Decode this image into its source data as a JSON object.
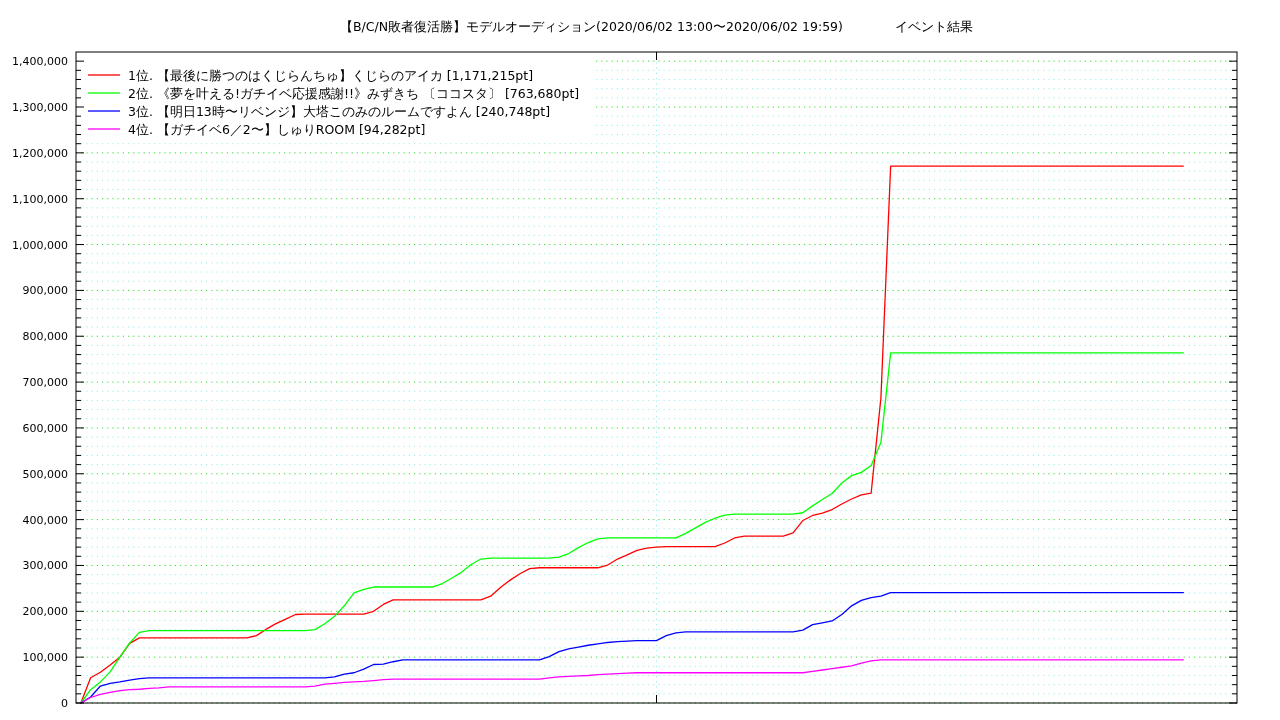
{
  "chart_data": {
    "type": "line",
    "title": "【B/C/N敗者復活勝】モデルオーディション(2020/06/02 13:00〜2020/06/02 19:59)　　　　イベント結果",
    "categories": [
      null,
      null,
      null,
      null,
      null,
      null,
      null,
      null,
      null,
      null,
      null,
      null,
      null,
      null,
      null,
      null,
      null,
      null,
      null,
      null,
      null,
      null,
      null,
      null,
      null,
      null,
      null,
      null,
      null,
      null,
      null,
      null,
      null,
      null,
      null,
      null,
      null,
      null,
      null,
      null,
      null,
      null,
      null,
      null,
      null,
      null,
      null,
      null,
      null,
      null,
      null,
      null,
      null,
      null,
      null,
      null,
      null,
      null,
      null,
      null,
      null,
      null,
      null,
      null,
      null,
      null,
      null,
      null,
      null,
      null,
      null,
      null,
      null,
      null,
      null,
      null,
      null,
      null,
      null,
      null,
      null,
      null,
      null,
      null,
      null,
      null,
      null,
      null,
      null,
      null,
      null,
      null,
      null,
      null,
      null,
      null,
      null,
      null,
      null,
      null,
      null,
      null,
      null,
      null,
      null,
      null,
      null,
      null,
      null,
      null,
      null,
      null,
      null,
      null,
      null,
      null,
      null,
      null,
      null
    ],
    "series": [
      {
        "name": "1位. 【最後に勝つのはくじらんちゅ】くじらのアイカ [1,171,215pt]",
        "color": "#ff0000",
        "values": [
          0,
          55000,
          67000,
          83000,
          100000,
          130000,
          142000,
          142000,
          142000,
          142000,
          142000,
          142000,
          142000,
          142000,
          142000,
          142000,
          142000,
          142000,
          147000,
          161000,
          173000,
          183000,
          193000,
          194000,
          194000,
          194000,
          194000,
          194000,
          194000,
          194000,
          200000,
          215000,
          225000,
          225000,
          225000,
          225000,
          225000,
          225000,
          225000,
          225000,
          225000,
          225000,
          233000,
          252000,
          268000,
          282000,
          293000,
          295000,
          295000,
          295000,
          295000,
          295000,
          295000,
          295000,
          301000,
          314000,
          323000,
          333000,
          338000,
          340000,
          341000,
          341000,
          341000,
          341000,
          341000,
          341000,
          349000,
          360000,
          364000,
          364000,
          364000,
          364000,
          364000,
          371000,
          398000,
          409000,
          414000,
          422000,
          434000,
          445000,
          454000,
          458000,
          665000,
          1171215,
          1171215,
          1171215,
          1171215,
          1171215,
          1171215,
          1171215,
          1171215,
          1171215,
          1171215,
          1171215,
          1171215,
          1171215,
          1171215,
          1171215,
          1171215,
          1171215,
          1171215,
          1171215,
          1171215,
          1171215,
          1171215,
          1171215,
          1171215,
          1171215,
          1171215,
          1171215,
          1171215,
          1171215,
          1171215,
          1171215,
          null,
          null,
          null,
          null,
          null
        ]
      },
      {
        "name": "2位. 《夢を叶える!ガチイベ応援感謝!!》みずきち 〔ココスタ〕 [763,680pt]",
        "color": "#00ff00",
        "values": [
          0,
          29000,
          46000,
          68000,
          100000,
          131000,
          154000,
          158000,
          158000,
          158000,
          158000,
          158000,
          158000,
          158000,
          158000,
          158000,
          158000,
          158000,
          158000,
          158000,
          158000,
          158000,
          158000,
          158000,
          160000,
          173000,
          189000,
          212000,
          240000,
          248000,
          253000,
          253000,
          253000,
          253000,
          253000,
          253000,
          253000,
          260000,
          272000,
          285000,
          302000,
          314000,
          316000,
          316000,
          316000,
          316000,
          316000,
          316000,
          316000,
          318000,
          326000,
          339000,
          350000,
          358000,
          360000,
          360000,
          360000,
          360000,
          360000,
          360000,
          360000,
          360000,
          370000,
          382000,
          394000,
          403000,
          410000,
          412000,
          412000,
          412000,
          412000,
          412000,
          412000,
          412000,
          415000,
          430000,
          444000,
          457000,
          480000,
          496000,
          503000,
          518000,
          568000,
          763680,
          763680,
          763680,
          763680,
          763680,
          763680,
          763680,
          763680,
          763680,
          763680,
          763680,
          763680,
          763680,
          763680,
          763680,
          763680,
          763680,
          763680,
          763680,
          763680,
          763680,
          763680,
          763680,
          763680,
          763680,
          763680,
          763680,
          763680,
          763680,
          763680,
          763680,
          null,
          null,
          null,
          null,
          null
        ]
      },
      {
        "name": "3位. 【明日13時〜リベンジ】大塔このみのルームですよん [240,748pt]",
        "color": "#0000ff",
        "values": [
          0,
          13000,
          37000,
          43000,
          46000,
          50000,
          53000,
          55000,
          55000,
          55000,
          55000,
          55000,
          55000,
          55000,
          55000,
          55000,
          55000,
          55000,
          55000,
          55000,
          55000,
          55000,
          55000,
          55000,
          55000,
          55000,
          57000,
          63000,
          66000,
          74000,
          84000,
          85000,
          90000,
          94000,
          94000,
          94000,
          94000,
          94000,
          94000,
          94000,
          94000,
          94000,
          94000,
          94000,
          94000,
          94000,
          94000,
          94000,
          101000,
          112000,
          118000,
          122000,
          126000,
          129000,
          132000,
          134000,
          135000,
          136000,
          136000,
          136000,
          147000,
          153000,
          155000,
          155000,
          155000,
          155000,
          155000,
          155000,
          155000,
          155000,
          155000,
          155000,
          155000,
          155000,
          159000,
          171000,
          175000,
          179000,
          193000,
          212000,
          224000,
          230000,
          233000,
          240748,
          240748,
          240748,
          240748,
          240748,
          240748,
          240748,
          240748,
          240748,
          240748,
          240748,
          240748,
          240748,
          240748,
          240748,
          240748,
          240748,
          240748,
          240748,
          240748,
          240748,
          240748,
          240748,
          240748,
          240748,
          240748,
          240748,
          240748,
          240748,
          240748,
          240748,
          null,
          null,
          null,
          null,
          null
        ]
      },
      {
        "name": "4位. 【ガチイベ6／2〜】しゅりROOM [94,282pt]",
        "color": "#ff00ff",
        "values": [
          0,
          12000,
          19000,
          23000,
          27000,
          29000,
          30000,
          32000,
          33000,
          35000,
          35000,
          35000,
          35000,
          35000,
          35000,
          35000,
          35000,
          35000,
          35000,
          35000,
          35000,
          35000,
          35000,
          35000,
          37000,
          41000,
          43000,
          45000,
          46000,
          47000,
          49000,
          51000,
          52000,
          52000,
          52000,
          52000,
          52000,
          52000,
          52000,
          52000,
          52000,
          52000,
          52000,
          52000,
          52000,
          52000,
          52000,
          52000,
          55000,
          57000,
          58000,
          59000,
          60000,
          62000,
          63000,
          64000,
          65000,
          66000,
          66000,
          66000,
          66000,
          66000,
          66000,
          66000,
          66000,
          66000,
          66000,
          66000,
          66000,
          66000,
          66000,
          66000,
          66000,
          66000,
          66000,
          69000,
          72000,
          75000,
          78000,
          81000,
          87000,
          92000,
          94282,
          94282,
          94282,
          94282,
          94282,
          94282,
          94282,
          94282,
          94282,
          94282,
          94282,
          94282,
          94282,
          94282,
          94282,
          94282,
          94282,
          94282,
          94282,
          94282,
          94282,
          94282,
          94282,
          94282,
          94282,
          94282,
          94282,
          94282,
          94282,
          94282,
          94282,
          94282,
          null,
          null,
          null,
          null,
          null
        ]
      }
    ],
    "ylim": [
      0,
      1420000
    ],
    "yticks": [
      0,
      {
        "value": 20000,
        "label": null
      },
      {
        "value": 40000,
        "label": null
      },
      {
        "value": 60000,
        "label": null
      },
      {
        "value": 80000,
        "label": null
      },
      {
        "value": 100000,
        "label": "100,000"
      },
      {
        "value": 120000,
        "label": null
      },
      {
        "value": 140000,
        "label": null
      },
      {
        "value": 160000,
        "label": null
      },
      {
        "value": 180000,
        "label": null
      },
      {
        "value": 200000,
        "label": "200,000"
      },
      {
        "value": 220000,
        "label": null
      },
      {
        "value": 240000,
        "label": null
      },
      {
        "value": 260000,
        "label": null
      },
      {
        "value": 280000,
        "label": null
      },
      {
        "value": 300000,
        "label": "300,000"
      },
      {
        "value": 320000,
        "label": null
      },
      {
        "value": 340000,
        "label": null
      },
      {
        "value": 360000,
        "label": null
      },
      {
        "value": 380000,
        "label": null
      },
      {
        "value": 400000,
        "label": "400,000"
      },
      {
        "value": 420000,
        "label": null
      },
      {
        "value": 440000,
        "label": null
      },
      {
        "value": 460000,
        "label": null
      },
      {
        "value": 480000,
        "label": null
      },
      {
        "value": 500000,
        "label": "500,000"
      },
      {
        "value": 520000,
        "label": null
      },
      {
        "value": 540000,
        "label": null
      },
      {
        "value": 560000,
        "label": null
      },
      {
        "value": 580000,
        "label": null
      },
      {
        "value": 600000,
        "label": "600,000"
      },
      {
        "value": 620000,
        "label": null
      },
      {
        "value": 640000,
        "label": null
      },
      {
        "value": 660000,
        "label": null
      },
      {
        "value": 680000,
        "label": null
      },
      {
        "value": 700000,
        "label": "700,000"
      },
      {
        "value": 720000,
        "label": null
      },
      {
        "value": 740000,
        "label": null
      },
      {
        "value": 760000,
        "label": null
      },
      {
        "value": 780000,
        "label": null
      },
      {
        "value": 800000,
        "label": "800,000"
      },
      {
        "value": 820000,
        "label": null
      },
      {
        "value": 840000,
        "label": null
      },
      {
        "value": 860000,
        "label": null
      },
      {
        "value": 880000,
        "label": null
      },
      {
        "value": 900000,
        "label": "900,000"
      },
      {
        "value": 920000,
        "label": null
      },
      {
        "value": 940000,
        "label": null
      },
      {
        "value": 960000,
        "label": null
      },
      {
        "value": 980000,
        "label": null
      },
      {
        "value": 1000000,
        "label": "1,000,000"
      },
      {
        "value": 1020000,
        "label": null
      },
      {
        "value": 1040000,
        "label": null
      },
      {
        "value": 1060000,
        "label": null
      },
      {
        "value": 1080000,
        "label": null
      },
      {
        "value": 1100000,
        "label": "1,100,000"
      },
      {
        "value": 1120000,
        "label": null
      },
      {
        "value": 1140000,
        "label": null
      },
      {
        "value": 1160000,
        "label": null
      },
      {
        "value": 1180000,
        "label": null
      },
      {
        "value": 1200000,
        "label": "1,200,000"
      },
      {
        "value": 1220000,
        "label": null
      },
      {
        "value": 1240000,
        "label": null
      },
      {
        "value": 1260000,
        "label": null
      },
      {
        "value": 1280000,
        "label": null
      },
      {
        "value": 1300000,
        "label": "1,300,000"
      },
      {
        "value": 1320000,
        "label": null
      },
      {
        "value": 1340000,
        "label": null
      },
      {
        "value": 1360000,
        "label": null
      },
      {
        "value": 1380000,
        "label": null
      },
      {
        "value": 1400000,
        "label": "1,400,000"
      }
    ],
    "grid": true,
    "legend": "top left",
    "tick_labels": "y"
  }
}
